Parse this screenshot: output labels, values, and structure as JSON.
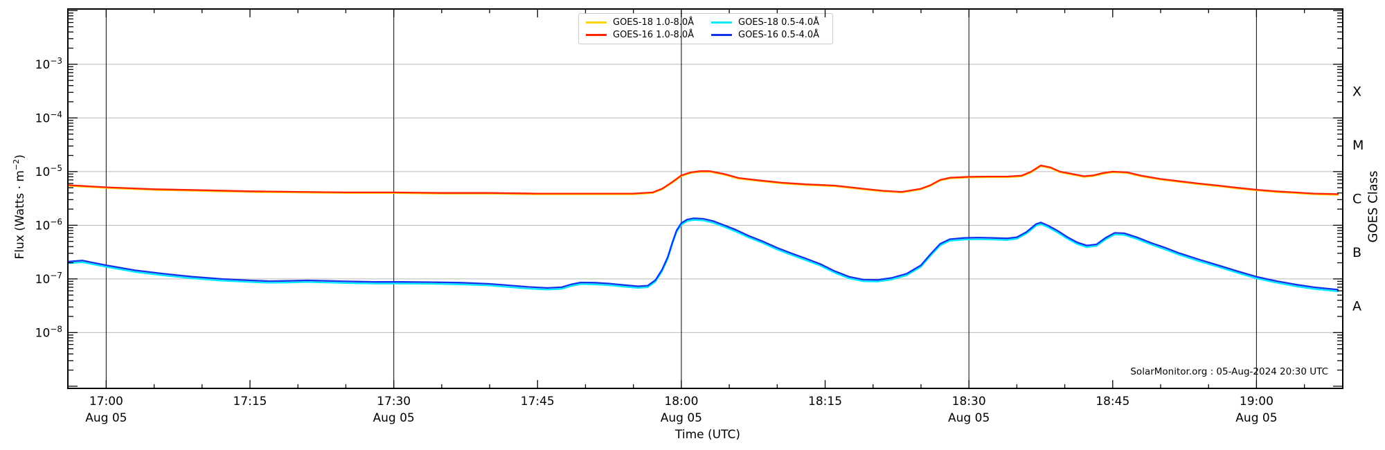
{
  "figure_title": "GOES X-ray flux time series plot",
  "footer": {
    "credit": "SolarMonitor.org : 05-Aug-2024 20:30 UTC"
  },
  "axis_labels": {
    "x": "Time (UTC)",
    "y_left": {
      "pre": "Flux (Watts · m",
      "sup": "−2",
      "post": ")"
    },
    "y_right": "GOES Class"
  },
  "legend": {
    "items": [
      {
        "label": "GOES-18 1.0-8.0Å",
        "color": "#ffd400"
      },
      {
        "label": "GOES-16 1.0-8.0Å",
        "color": "#ff2200"
      },
      {
        "label": "GOES-18 0.5-4.0Å",
        "color": "#00eaff"
      },
      {
        "label": "GOES-16 0.5-4.0Å",
        "color": "#1133ee"
      }
    ]
  },
  "colors": {
    "grid_horizontal": "#b9b9b9",
    "grid_vertical": "#1a1a1a",
    "spine": "#000000",
    "background": "#ffffff"
  },
  "chart_data": {
    "type": "line",
    "title": "",
    "xlabel": "Time (UTC)",
    "ylabel": "Flux (Watts · m^-2)",
    "ylabel_right": "GOES Class",
    "x_unit_note": "minutes after 17:00 UTC, 05-Aug-2024",
    "x_range": [
      -4,
      129
    ],
    "y_top_exp": -1.97,
    "y_bottom_exp": -9.04,
    "y_label_exps": [
      -3,
      -4,
      -5,
      -6,
      -7,
      -8
    ],
    "x_major_ticks_min": [
      0,
      15,
      30,
      45,
      60,
      75,
      90,
      105,
      120
    ],
    "x_minor_step_min": 5,
    "x_gridlines_min": [
      0,
      30,
      60,
      90,
      120
    ],
    "x_tick_labels": [
      {
        "t": 0,
        "label": "17:00",
        "date": "Aug 05"
      },
      {
        "t": 15,
        "label": "17:15",
        "date": ""
      },
      {
        "t": 30,
        "label": "17:30",
        "date": "Aug 05"
      },
      {
        "t": 45,
        "label": "17:45",
        "date": ""
      },
      {
        "t": 60,
        "label": "18:00",
        "date": "Aug 05"
      },
      {
        "t": 75,
        "label": "18:15",
        "date": ""
      },
      {
        "t": 90,
        "label": "18:30",
        "date": "Aug 05"
      },
      {
        "t": 105,
        "label": "18:45",
        "date": ""
      },
      {
        "t": 120,
        "label": "19:00",
        "date": "Aug 05"
      }
    ],
    "goes_class_letters": [
      {
        "label": "X",
        "exp": -3.5
      },
      {
        "label": "M",
        "exp": -4.5
      },
      {
        "label": "C",
        "exp": -5.5
      },
      {
        "label": "B",
        "exp": -6.5
      },
      {
        "label": "A",
        "exp": -7.5
      }
    ],
    "series": [
      {
        "name": "GOES-18 1.0-8.0Å",
        "color": "#ffd400",
        "derived_from": "GOES-16 1.0-8.0Å",
        "scale": 0.97,
        "note": "hidden almost entirely beneath GOES-16 long channel"
      },
      {
        "name": "GOES-18 0.5-4.0Å",
        "color": "#00eaff",
        "derived_from": "GOES-16 0.5-4.0Å",
        "scale": 0.93,
        "note": "tracks just below GOES-16 short channel"
      },
      {
        "name": "GOES-16 1.0-8.0Å",
        "color": "#ff2200",
        "points": [
          [
            -4,
            5.6e-06
          ],
          [
            0,
            5.1e-06
          ],
          [
            5,
            4.7e-06
          ],
          [
            10,
            4.5e-06
          ],
          [
            15,
            4.3e-06
          ],
          [
            20,
            4.2e-06
          ],
          [
            25,
            4.1e-06
          ],
          [
            30,
            4.1e-06
          ],
          [
            35,
            4e-06
          ],
          [
            40,
            4e-06
          ],
          [
            45,
            3.9e-06
          ],
          [
            50,
            3.9e-06
          ],
          [
            55,
            3.9e-06
          ],
          [
            57,
            4.1e-06
          ],
          [
            58,
            4.8e-06
          ],
          [
            59,
            6.3e-06
          ],
          [
            60,
            8.5e-06
          ],
          [
            61,
            9.7e-06
          ],
          [
            62,
            1.02e-05
          ],
          [
            63,
            1.02e-05
          ],
          [
            64.5,
            9e-06
          ],
          [
            66,
            7.6e-06
          ],
          [
            68,
            6.9e-06
          ],
          [
            70.5,
            6.2e-06
          ],
          [
            73,
            5.8e-06
          ],
          [
            76,
            5.5e-06
          ],
          [
            79,
            4.8e-06
          ],
          [
            81,
            4.4e-06
          ],
          [
            83,
            4.2e-06
          ],
          [
            85,
            4.8e-06
          ],
          [
            86,
            5.6e-06
          ],
          [
            87,
            7e-06
          ],
          [
            88,
            7.7e-06
          ],
          [
            90,
            8e-06
          ],
          [
            92,
            8.1e-06
          ],
          [
            94,
            8.1e-06
          ],
          [
            95.5,
            8.4e-06
          ],
          [
            96.5,
            1e-05
          ],
          [
            97.5,
            1.3e-05
          ],
          [
            98.5,
            1.2e-05
          ],
          [
            99.5,
            1e-05
          ],
          [
            101,
            8.9e-06
          ],
          [
            102,
            8.2e-06
          ],
          [
            103,
            8.5e-06
          ],
          [
            104,
            9.4e-06
          ],
          [
            105,
            1e-05
          ],
          [
            106.5,
            9.7e-06
          ],
          [
            108,
            8.4e-06
          ],
          [
            110,
            7.3e-06
          ],
          [
            112,
            6.6e-06
          ],
          [
            114,
            6e-06
          ],
          [
            116,
            5.5e-06
          ],
          [
            118,
            5e-06
          ],
          [
            120,
            4.6e-06
          ],
          [
            122,
            4.3e-06
          ],
          [
            124,
            4.1e-06
          ],
          [
            126,
            3.9e-06
          ],
          [
            128.5,
            3.8e-06
          ]
        ]
      },
      {
        "name": "GOES-16 0.5-4.0Å",
        "color": "#1133ee",
        "points": [
          [
            -4,
            2.1e-07
          ],
          [
            -2.5,
            2.2e-07
          ],
          [
            0,
            1.8e-07
          ],
          [
            3,
            1.45e-07
          ],
          [
            6,
            1.25e-07
          ],
          [
            9,
            1.1e-07
          ],
          [
            12,
            1e-07
          ],
          [
            15,
            9.4e-08
          ],
          [
            17,
            9.1e-08
          ],
          [
            19,
            9.2e-08
          ],
          [
            21,
            9.4e-08
          ],
          [
            23,
            9.2e-08
          ],
          [
            25,
            9e-08
          ],
          [
            28,
            8.8e-08
          ],
          [
            31,
            8.8e-08
          ],
          [
            34,
            8.7e-08
          ],
          [
            37,
            8.5e-08
          ],
          [
            40,
            8.1e-08
          ],
          [
            42,
            7.6e-08
          ],
          [
            44,
            7.1e-08
          ],
          [
            46,
            6.8e-08
          ],
          [
            47.5,
            7e-08
          ],
          [
            48.5,
            7.9e-08
          ],
          [
            49.5,
            8.6e-08
          ],
          [
            51,
            8.5e-08
          ],
          [
            52.5,
            8.2e-08
          ],
          [
            54,
            7.7e-08
          ],
          [
            55.5,
            7.3e-08
          ],
          [
            56.5,
            7.5e-08
          ],
          [
            57.3,
            9.5e-08
          ],
          [
            58,
            1.5e-07
          ],
          [
            58.6,
            2.6e-07
          ],
          [
            59.1,
            5e-07
          ],
          [
            59.5,
            8e-07
          ],
          [
            60,
            1.1e-06
          ],
          [
            60.6,
            1.28e-06
          ],
          [
            61.3,
            1.35e-06
          ],
          [
            62.3,
            1.32e-06
          ],
          [
            63.3,
            1.2e-06
          ],
          [
            64.5,
            1e-06
          ],
          [
            65.7,
            8.2e-07
          ],
          [
            67,
            6.4e-07
          ],
          [
            68.5,
            5e-07
          ],
          [
            70,
            3.8e-07
          ],
          [
            71.5,
            3e-07
          ],
          [
            73,
            2.4e-07
          ],
          [
            74.5,
            1.9e-07
          ],
          [
            76,
            1.4e-07
          ],
          [
            77.5,
            1.1e-07
          ],
          [
            79,
            9.7e-08
          ],
          [
            80.5,
            9.6e-08
          ],
          [
            82,
            1.05e-07
          ],
          [
            83.5,
            1.25e-07
          ],
          [
            85,
            1.8e-07
          ],
          [
            86,
            2.9e-07
          ],
          [
            87,
            4.5e-07
          ],
          [
            88,
            5.5e-07
          ],
          [
            89.5,
            5.8e-07
          ],
          [
            91,
            5.9e-07
          ],
          [
            92.5,
            5.8e-07
          ],
          [
            94,
            5.7e-07
          ],
          [
            95,
            6e-07
          ],
          [
            96,
            7.5e-07
          ],
          [
            97,
            1.05e-06
          ],
          [
            97.5,
            1.13e-06
          ],
          [
            98.3,
            9.8e-07
          ],
          [
            99.3,
            7.8e-07
          ],
          [
            100.3,
            6e-07
          ],
          [
            101.3,
            4.8e-07
          ],
          [
            102.3,
            4.2e-07
          ],
          [
            103.3,
            4.4e-07
          ],
          [
            104.3,
            5.9e-07
          ],
          [
            105.2,
            7.2e-07
          ],
          [
            106.2,
            7.1e-07
          ],
          [
            107.5,
            6e-07
          ],
          [
            109,
            4.7e-07
          ],
          [
            110.5,
            3.8e-07
          ],
          [
            112,
            3e-07
          ],
          [
            114,
            2.3e-07
          ],
          [
            116,
            1.8e-07
          ],
          [
            118,
            1.4e-07
          ],
          [
            120,
            1.1e-07
          ],
          [
            122,
            9.2e-08
          ],
          [
            124,
            7.9e-08
          ],
          [
            126,
            7e-08
          ],
          [
            128.5,
            6.3e-08
          ]
        ]
      }
    ]
  }
}
